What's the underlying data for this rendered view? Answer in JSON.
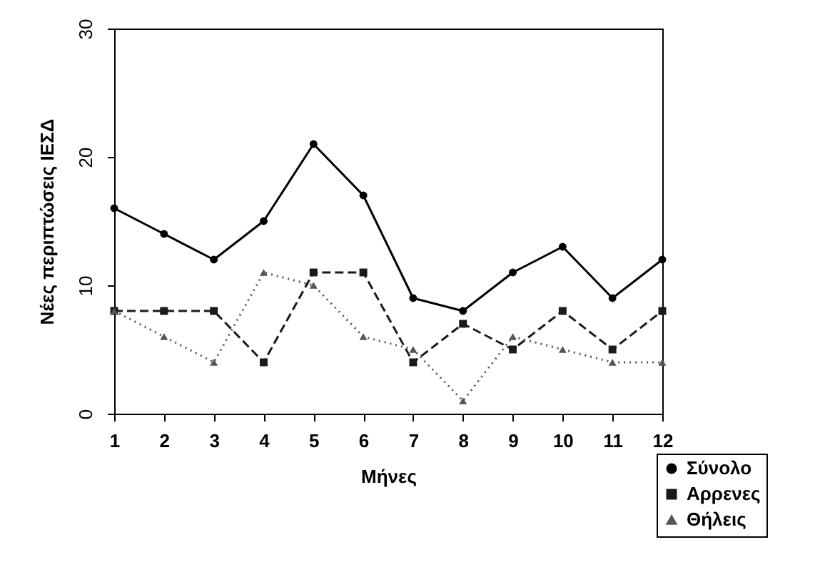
{
  "chart_data": {
    "type": "line",
    "xlabel": "Μήνες",
    "ylabel": "Νέες περιπτώσεις ΙΕΣΔ",
    "x": [
      1,
      2,
      3,
      4,
      5,
      6,
      7,
      8,
      9,
      10,
      11,
      12
    ],
    "xlim": [
      1,
      12
    ],
    "xticks": [
      1,
      2,
      3,
      4,
      5,
      6,
      7,
      8,
      9,
      10,
      11,
      12
    ],
    "ylim": [
      0,
      30
    ],
    "yticks": [
      0,
      10,
      20,
      30
    ],
    "grid": false,
    "legend": "bottom right",
    "series": [
      {
        "name": "Σύνολο",
        "color": "#000000",
        "marker": "circle",
        "line_style": "solid",
        "values": [
          16,
          14,
          12,
          15,
          21,
          17,
          9,
          8,
          11,
          13,
          9,
          12
        ]
      },
      {
        "name": "Αρρενες",
        "color": "#1a1a1a",
        "marker": "square",
        "line_style": "dashed",
        "values": [
          8,
          8,
          8,
          4,
          11,
          11,
          4,
          7,
          5,
          8,
          5,
          8
        ]
      },
      {
        "name": "Θήλεις",
        "color": "#555555",
        "marker": "triangle",
        "line_style": "dotted",
        "values": [
          8,
          6,
          4,
          11,
          10,
          6,
          5,
          1,
          6,
          5,
          4,
          4
        ]
      }
    ]
  }
}
